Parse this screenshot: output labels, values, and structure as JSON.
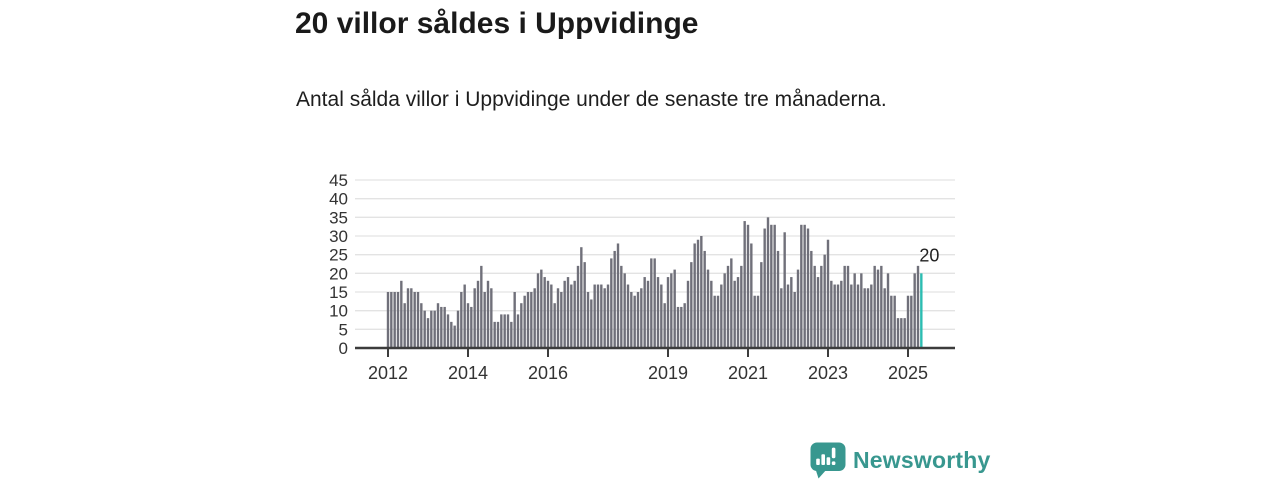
{
  "header": {
    "title": "20 villor såldes i Uppvidinge",
    "subtitle": "Antal sålda villor i Uppvidinge under de senaste tre månaderna."
  },
  "branding": {
    "name": "Newsworthy",
    "color": "#38978F",
    "icon": "speech-bubble-bar-chart"
  },
  "chart_data": {
    "type": "bar",
    "title": "20 villor såldes i Uppvidinge",
    "xlabel": "",
    "ylabel": "",
    "ylim": [
      0,
      45
    ],
    "yticks": [
      0,
      5,
      10,
      15,
      20,
      25,
      30,
      35,
      40,
      45
    ],
    "grid": true,
    "x_start_year": 2012,
    "months_per_bar": 1,
    "xticks": [
      2012,
      2014,
      2016,
      2019,
      2021,
      2023,
      2025
    ],
    "bar_color": "#70707A",
    "highlight_color": "#2CBCB1",
    "highlight_index_from_end": 1,
    "annotation": {
      "text": "20",
      "value": 20
    },
    "values": [
      15,
      15,
      15,
      15,
      18,
      12,
      16,
      16,
      15,
      15,
      12,
      10,
      8,
      10,
      10,
      12,
      11,
      11,
      9,
      7,
      6,
      10,
      15,
      17,
      12,
      11,
      16,
      18,
      22,
      15,
      18,
      16,
      7,
      7,
      9,
      9,
      9,
      7,
      15,
      9,
      12,
      14,
      15,
      15,
      16,
      20,
      21,
      19,
      18,
      17,
      12,
      16,
      15,
      18,
      19,
      17,
      18,
      22,
      27,
      23,
      15,
      13,
      17,
      17,
      17,
      16,
      17,
      24,
      26,
      28,
      22,
      20,
      17,
      15,
      14,
      15,
      16,
      19,
      18,
      24,
      24,
      19,
      17,
      12,
      19,
      20,
      21,
      11,
      11,
      12,
      18,
      23,
      28,
      29,
      30,
      26,
      21,
      18,
      14,
      14,
      17,
      20,
      22,
      24,
      18,
      19,
      22,
      34,
      33,
      28,
      14,
      14,
      23,
      32,
      35,
      33,
      33,
      26,
      16,
      31,
      17,
      19,
      15,
      21,
      33,
      33,
      32,
      26,
      22,
      19,
      22,
      25,
      29,
      18,
      17,
      17,
      18,
      22,
      22,
      17,
      20,
      17,
      20,
      16,
      16,
      17,
      22,
      21,
      22,
      16,
      20,
      14,
      14,
      8,
      8,
      8,
      14,
      14,
      20,
      22,
      20
    ]
  }
}
